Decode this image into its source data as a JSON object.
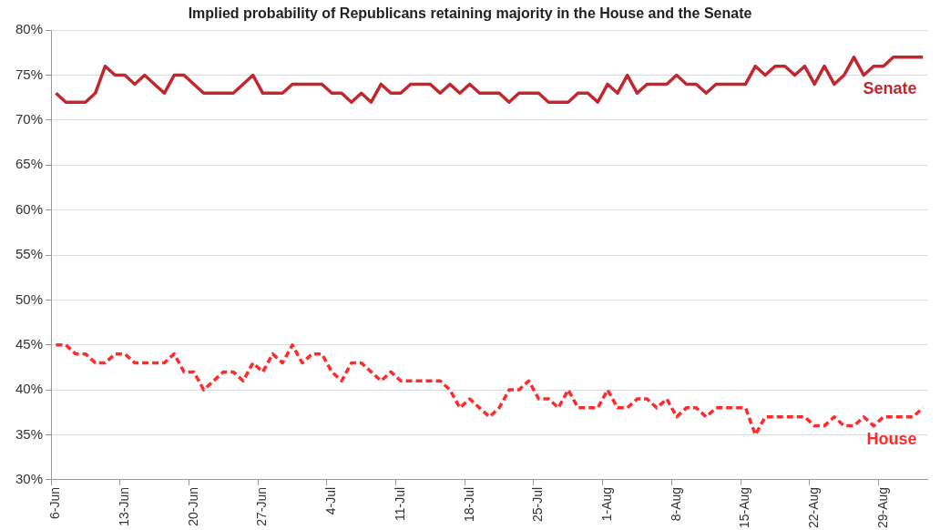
{
  "chart_data": {
    "type": "line",
    "title": "Implied probability of Republicans retaining majority in the House and the Senate",
    "categories": [
      "6-Jun",
      null,
      null,
      null,
      null,
      null,
      null,
      "13-Jun",
      null,
      null,
      null,
      null,
      null,
      null,
      "20-Jun",
      null,
      null,
      null,
      null,
      null,
      null,
      "27-Jun",
      null,
      null,
      null,
      null,
      null,
      null,
      "4-Jul",
      null,
      null,
      null,
      null,
      null,
      null,
      "11-Jul",
      null,
      null,
      null,
      null,
      null,
      null,
      "18-Jul",
      null,
      null,
      null,
      null,
      null,
      null,
      "25-Jul",
      null,
      null,
      null,
      null,
      null,
      null,
      "1-Aug",
      null,
      null,
      null,
      null,
      null,
      null,
      "8-Aug",
      null,
      null,
      null,
      null,
      null,
      null,
      "15-Aug",
      null,
      null,
      null,
      null,
      null,
      null,
      "22-Aug",
      null,
      null,
      null,
      null,
      null,
      null,
      "29-Aug",
      null,
      null,
      null,
      null
    ],
    "series": [
      {
        "name": "Senate",
        "color": "#c1272d",
        "line_style": "solid",
        "values": [
          73,
          72,
          72,
          72,
          73,
          76,
          75,
          75,
          74,
          75,
          74,
          73,
          75,
          75,
          74,
          73,
          73,
          73,
          73,
          74,
          75,
          73,
          73,
          73,
          74,
          74,
          74,
          74,
          73,
          73,
          72,
          73,
          72,
          74,
          73,
          73,
          74,
          74,
          74,
          73,
          74,
          73,
          74,
          73,
          73,
          73,
          72,
          73,
          73,
          73,
          72,
          72,
          72,
          73,
          73,
          72,
          74,
          73,
          75,
          73,
          74,
          74,
          74,
          75,
          74,
          74,
          73,
          74,
          74,
          74,
          74,
          76,
          75,
          76,
          76,
          75,
          76,
          74,
          76,
          74,
          75,
          77,
          75,
          76,
          76,
          77,
          77,
          77,
          77
        ]
      },
      {
        "name": "House",
        "color": "#ff2b2b",
        "line_style": "dashed",
        "values": [
          45,
          45,
          44,
          44,
          43,
          43,
          44,
          44,
          43,
          43,
          43,
          43,
          44,
          42,
          42,
          40,
          41,
          42,
          42,
          41,
          43,
          42,
          44,
          43,
          45,
          43,
          44,
          44,
          42,
          41,
          43,
          43,
          42,
          41,
          42,
          41,
          41,
          41,
          41,
          41,
          40,
          38,
          39,
          38,
          37,
          38,
          40,
          40,
          41,
          39,
          39,
          38,
          40,
          38,
          38,
          38,
          40,
          38,
          38,
          39,
          39,
          38,
          39,
          37,
          38,
          38,
          37,
          38,
          38,
          38,
          38,
          35,
          37,
          37,
          37,
          37,
          37,
          36,
          36,
          37,
          36,
          36,
          37,
          36,
          37,
          37,
          37,
          37,
          38
        ]
      }
    ],
    "ylim": [
      30,
      80
    ],
    "yticks": [
      {
        "value": 30,
        "label": "30%"
      },
      {
        "value": 35,
        "label": "35%"
      },
      {
        "value": 40,
        "label": "40%"
      },
      {
        "value": 45,
        "label": "45%"
      },
      {
        "value": 50,
        "label": "50%"
      },
      {
        "value": 55,
        "label": "55%"
      },
      {
        "value": 60,
        "label": "60%"
      },
      {
        "value": 65,
        "label": "65%"
      },
      {
        "value": 70,
        "label": "70%"
      },
      {
        "value": 75,
        "label": "75%"
      },
      {
        "value": 80,
        "label": "80%"
      }
    ],
    "grid": "y",
    "legend": false,
    "marker": "none"
  }
}
